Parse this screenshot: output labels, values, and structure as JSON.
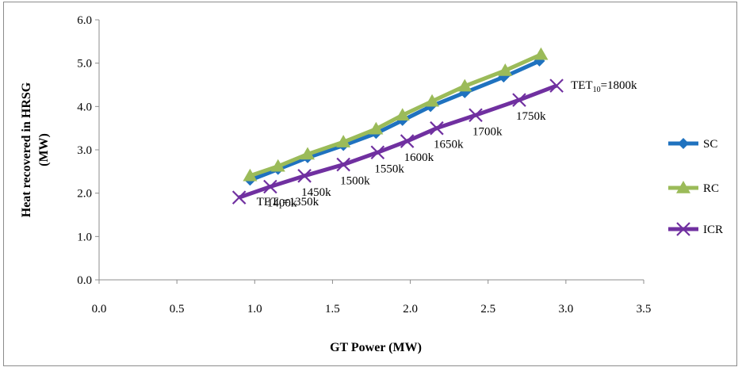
{
  "chart_data": {
    "type": "line",
    "title": "",
    "xlabel": "GT Power (MW)",
    "ylabel_lines": [
      "Heat recovered in HRSG",
      "(MW)"
    ],
    "xlim": [
      0,
      3.5
    ],
    "ylim": [
      0,
      6
    ],
    "xticks": [
      "0.0",
      "0.5",
      "1.0",
      "1.5",
      "2.0",
      "2.5",
      "3.0",
      "3.5"
    ],
    "yticks": [
      "0.0",
      "1.0",
      "2.0",
      "3.0",
      "4.0",
      "5.0",
      "6.0"
    ],
    "grid": false,
    "legend_position": "right",
    "series": [
      {
        "name": "SC",
        "color": "#1f72bf",
        "marker": "diamond",
        "x": [
          0.97,
          1.15,
          1.34,
          1.57,
          1.78,
          1.95,
          2.13,
          2.35,
          2.6,
          2.83
        ],
        "y": [
          2.3,
          2.55,
          2.82,
          3.1,
          3.38,
          3.68,
          4.0,
          4.32,
          4.68,
          5.05
        ]
      },
      {
        "name": "RC",
        "color": "#9bbb59",
        "marker": "triangle",
        "x": [
          0.97,
          1.15,
          1.34,
          1.57,
          1.78,
          1.95,
          2.14,
          2.35,
          2.61,
          2.84
        ],
        "y": [
          2.4,
          2.62,
          2.9,
          3.18,
          3.48,
          3.8,
          4.12,
          4.47,
          4.83,
          5.2
        ]
      },
      {
        "name": "ICR",
        "color": "#7030a0",
        "marker": "x",
        "x": [
          0.9,
          1.1,
          1.32,
          1.57,
          1.79,
          1.98,
          2.17,
          2.42,
          2.7,
          2.94
        ],
        "y": [
          1.9,
          2.15,
          2.4,
          2.66,
          2.94,
          3.2,
          3.5,
          3.8,
          4.15,
          4.48
        ]
      }
    ],
    "annotations": [
      {
        "text": "1400k",
        "x": 1.1,
        "y": 2.15
      },
      {
        "text": "1450k",
        "x": 1.32,
        "y": 2.4
      },
      {
        "text": "1500k",
        "x": 1.57,
        "y": 2.66
      },
      {
        "text": "1550k",
        "x": 1.79,
        "y": 2.94
      },
      {
        "text": "1600k",
        "x": 1.98,
        "y": 3.2
      },
      {
        "text": "1650k",
        "x": 2.17,
        "y": 3.5
      },
      {
        "text": "1700k",
        "x": 2.42,
        "y": 3.8
      },
      {
        "text": "1750k",
        "x": 2.7,
        "y": 4.15
      }
    ],
    "tet_first": {
      "main": "TET",
      "sub": "1",
      "rest": "=1350k"
    },
    "tet_last": {
      "main": "TET",
      "sub": "10",
      "rest": "=1800k"
    }
  }
}
